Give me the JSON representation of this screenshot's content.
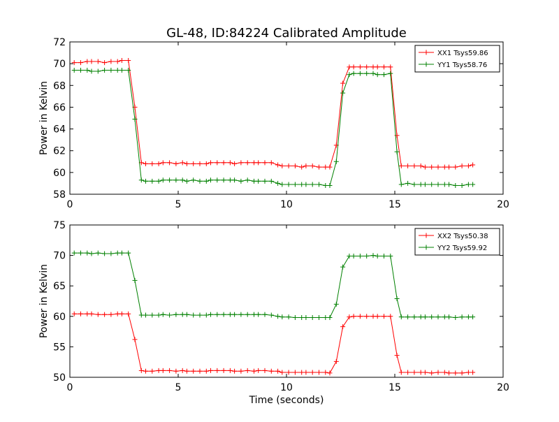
{
  "title": "GL-48, ID:84224 Calibrated Amplitude",
  "xlabel": "Time (seconds)",
  "colors": {
    "red": "#ff0000",
    "green": "#008000"
  },
  "chart_data": [
    {
      "type": "line",
      "ylabel": "Power in Kelvin",
      "xlim": [
        0,
        20
      ],
      "ylim": [
        58,
        72
      ],
      "xticks": [
        "0",
        "5",
        "10",
        "15",
        "20"
      ],
      "yticks": [
        "58",
        "60",
        "62",
        "64",
        "66",
        "68",
        "70",
        "72"
      ],
      "legend_position": "top-right",
      "x": [
        0.2,
        0.5,
        0.8,
        1.0,
        1.3,
        1.6,
        1.9,
        2.2,
        2.4,
        2.7,
        3.0,
        3.3,
        3.5,
        3.8,
        4.1,
        4.3,
        4.6,
        4.9,
        5.2,
        5.4,
        5.7,
        6.0,
        6.3,
        6.5,
        6.8,
        7.1,
        7.4,
        7.6,
        7.9,
        8.2,
        8.5,
        8.7,
        9.0,
        9.3,
        9.6,
        9.8,
        10.1,
        10.4,
        10.7,
        10.9,
        11.2,
        11.5,
        11.8,
        12.0,
        12.3,
        12.6,
        12.9,
        13.1,
        13.4,
        13.7,
        14.0,
        14.2,
        14.5,
        14.8,
        15.1,
        15.3,
        15.6,
        15.9,
        16.2,
        16.4,
        16.7,
        17.0,
        17.3,
        17.5,
        17.8,
        18.1,
        18.4,
        18.6
      ],
      "series": [
        {
          "name": "XX1 Tsys59.86",
          "color": "#ff0000",
          "values": [
            70.1,
            70.1,
            70.2,
            70.2,
            70.2,
            70.1,
            70.2,
            70.2,
            70.3,
            70.3,
            66.0,
            60.9,
            60.8,
            60.8,
            60.8,
            60.9,
            60.9,
            60.8,
            60.9,
            60.8,
            60.8,
            60.8,
            60.8,
            60.9,
            60.9,
            60.9,
            60.9,
            60.8,
            60.9,
            60.9,
            60.9,
            60.9,
            60.9,
            60.9,
            60.7,
            60.6,
            60.6,
            60.6,
            60.5,
            60.6,
            60.6,
            60.5,
            60.5,
            60.5,
            62.5,
            68.2,
            69.7,
            69.7,
            69.7,
            69.7,
            69.7,
            69.7,
            69.7,
            69.7,
            63.4,
            60.6,
            60.6,
            60.6,
            60.6,
            60.5,
            60.5,
            60.5,
            60.5,
            60.5,
            60.5,
            60.6,
            60.6,
            60.7
          ]
        },
        {
          "name": "YY1 Tsys58.76",
          "color": "#008000",
          "values": [
            69.4,
            69.4,
            69.4,
            69.3,
            69.3,
            69.4,
            69.4,
            69.4,
            69.4,
            69.4,
            64.9,
            59.3,
            59.2,
            59.2,
            59.2,
            59.3,
            59.3,
            59.3,
            59.3,
            59.2,
            59.3,
            59.2,
            59.2,
            59.3,
            59.3,
            59.3,
            59.3,
            59.3,
            59.2,
            59.3,
            59.2,
            59.2,
            59.2,
            59.2,
            59.0,
            58.9,
            58.9,
            58.9,
            58.9,
            58.9,
            58.9,
            58.9,
            58.8,
            58.8,
            61.0,
            67.3,
            69.0,
            69.1,
            69.1,
            69.1,
            69.1,
            69.0,
            69.0,
            69.1,
            61.9,
            58.9,
            59.0,
            58.9,
            58.9,
            58.9,
            58.9,
            58.9,
            58.9,
            58.9,
            58.8,
            58.8,
            58.9,
            58.9
          ]
        }
      ]
    },
    {
      "type": "line",
      "ylabel": "Power in Kelvin",
      "xlim": [
        0,
        20
      ],
      "ylim": [
        50,
        75
      ],
      "xticks": [
        "0",
        "5",
        "10",
        "15",
        "20"
      ],
      "yticks": [
        "50",
        "55",
        "60",
        "65",
        "70",
        "75"
      ],
      "legend_position": "top-right",
      "x": [
        0.2,
        0.5,
        0.8,
        1.0,
        1.3,
        1.6,
        1.9,
        2.2,
        2.4,
        2.7,
        3.0,
        3.3,
        3.5,
        3.8,
        4.1,
        4.3,
        4.6,
        4.9,
        5.2,
        5.4,
        5.7,
        6.0,
        6.3,
        6.5,
        6.8,
        7.1,
        7.4,
        7.6,
        7.9,
        8.2,
        8.5,
        8.7,
        9.0,
        9.3,
        9.6,
        9.8,
        10.1,
        10.4,
        10.7,
        10.9,
        11.2,
        11.5,
        11.8,
        12.0,
        12.3,
        12.6,
        12.9,
        13.1,
        13.4,
        13.7,
        14.0,
        14.2,
        14.5,
        14.8,
        15.1,
        15.3,
        15.6,
        15.9,
        16.2,
        16.4,
        16.7,
        17.0,
        17.3,
        17.5,
        17.8,
        18.1,
        18.4,
        18.6
      ],
      "series": [
        {
          "name": "XX2 Tsys50.38",
          "color": "#ff0000",
          "values": [
            60.4,
            60.4,
            60.4,
            60.4,
            60.3,
            60.3,
            60.3,
            60.4,
            60.4,
            60.4,
            56.2,
            51.1,
            51.0,
            51.0,
            51.1,
            51.1,
            51.1,
            51.0,
            51.1,
            51.0,
            51.0,
            51.0,
            51.0,
            51.1,
            51.1,
            51.1,
            51.1,
            51.0,
            51.0,
            51.1,
            51.0,
            51.1,
            51.1,
            51.0,
            51.0,
            50.8,
            50.8,
            50.8,
            50.8,
            50.8,
            50.8,
            50.8,
            50.8,
            50.7,
            52.6,
            58.3,
            59.9,
            60.0,
            60.0,
            60.0,
            60.0,
            60.0,
            60.0,
            60.0,
            53.6,
            50.8,
            50.8,
            50.8,
            50.8,
            50.8,
            50.7,
            50.8,
            50.8,
            50.7,
            50.7,
            50.7,
            50.8,
            50.8
          ]
        },
        {
          "name": "YY2 Tsys59.92",
          "color": "#008000",
          "values": [
            70.4,
            70.4,
            70.4,
            70.3,
            70.4,
            70.3,
            70.3,
            70.4,
            70.4,
            70.4,
            65.9,
            60.2,
            60.2,
            60.2,
            60.2,
            60.3,
            60.2,
            60.3,
            60.3,
            60.3,
            60.2,
            60.2,
            60.2,
            60.3,
            60.3,
            60.3,
            60.3,
            60.3,
            60.3,
            60.3,
            60.3,
            60.3,
            60.3,
            60.2,
            60.0,
            59.9,
            59.9,
            59.8,
            59.8,
            59.8,
            59.8,
            59.8,
            59.8,
            59.8,
            62.0,
            68.1,
            69.9,
            69.9,
            69.9,
            69.9,
            70.0,
            69.9,
            69.9,
            69.9,
            62.9,
            59.9,
            59.9,
            59.9,
            59.9,
            59.9,
            59.9,
            59.9,
            59.9,
            59.9,
            59.8,
            59.9,
            59.9,
            59.9
          ]
        }
      ]
    }
  ]
}
